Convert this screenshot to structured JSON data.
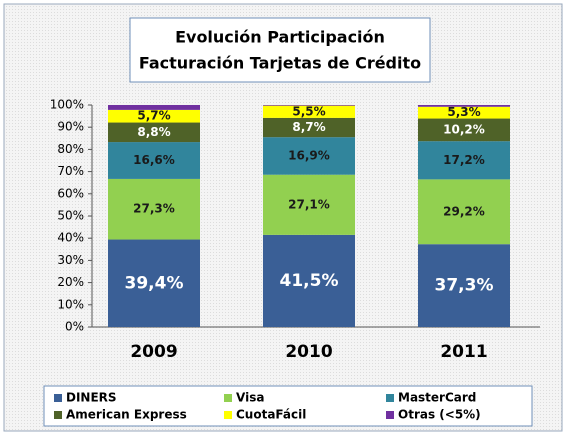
{
  "chart_data": {
    "type": "stacked_bar",
    "title": [
      "Evolución Participación",
      "Facturación Tarjetas de Crédito"
    ],
    "categories": [
      "2009",
      "2010",
      "2011"
    ],
    "series": [
      {
        "name": "DINERS",
        "color": "#3a5f96",
        "values": [
          39.4,
          41.5,
          37.3
        ],
        "value_labels": [
          "39,4%",
          "41,5%",
          "37,3%"
        ]
      },
      {
        "name": "Visa",
        "color": "#92d050",
        "values": [
          27.3,
          27.1,
          29.2
        ],
        "value_labels": [
          "27,3%",
          "27,1%",
          "29,2%"
        ]
      },
      {
        "name": "MasterCard",
        "color": "#31859c",
        "values": [
          16.6,
          16.9,
          17.2
        ],
        "value_labels": [
          "16,6%",
          "16,9%",
          "17,2%"
        ]
      },
      {
        "name": "American Express",
        "color": "#4f6228",
        "values": [
          8.8,
          8.7,
          10.2
        ],
        "value_labels": [
          "8,8%",
          "8,7%",
          "10,2%"
        ]
      },
      {
        "name": "CuotaFácil",
        "color": "#ffff00",
        "values": [
          5.7,
          5.5,
          5.3
        ],
        "value_labels": [
          "5,7%",
          "5,5%",
          "5,3%"
        ]
      },
      {
        "name": "Otras (<5%)",
        "color": "#7030a0",
        "values": [
          2.2,
          0.3,
          0.8
        ]
      }
    ],
    "ylim": [
      0,
      100
    ],
    "yticks": [
      {
        "value": 0,
        "label": "0%"
      },
      {
        "value": 10,
        "label": "10%"
      },
      {
        "value": 20,
        "label": "20%"
      },
      {
        "value": 30,
        "label": "30%"
      },
      {
        "value": 40,
        "label": "40%"
      },
      {
        "value": 50,
        "label": "50%"
      },
      {
        "value": 60,
        "label": "60%"
      },
      {
        "value": 70,
        "label": "70%"
      },
      {
        "value": 80,
        "label": "80%"
      },
      {
        "value": 90,
        "label": "90%"
      },
      {
        "value": 100,
        "label": "100%"
      }
    ],
    "grid": false
  }
}
